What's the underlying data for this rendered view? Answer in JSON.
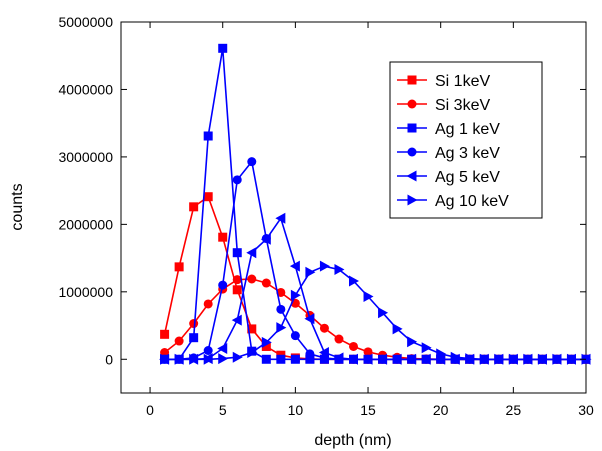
{
  "chart_data": {
    "type": "line",
    "title": "",
    "xlabel": "depth (nm)",
    "ylabel": "counts",
    "xlim": [
      -2,
      30
    ],
    "ylim": [
      -500000,
      5000000
    ],
    "xticks": [
      0,
      5,
      10,
      15,
      20,
      25,
      30
    ],
    "yticks": [
      0,
      1000000,
      2000000,
      3000000,
      4000000,
      5000000
    ],
    "xtick_labels": [
      "0",
      "5",
      "10",
      "15",
      "20",
      "25",
      "30"
    ],
    "ytick_labels": [
      "0",
      "1000000",
      "2000000",
      "3000000",
      "4000000",
      "5000000"
    ],
    "grid": false,
    "legend_position": "top-right",
    "x": [
      1,
      2,
      3,
      4,
      5,
      6,
      7,
      8,
      9,
      10,
      11,
      12,
      13,
      14,
      15,
      16,
      17,
      18,
      19,
      20,
      21,
      22,
      23,
      24,
      25,
      26,
      27,
      28,
      29,
      30
    ],
    "series": [
      {
        "name": "Si 1keV",
        "color": "#ff0000",
        "marker": "square",
        "values": [
          370000,
          1370000,
          2260000,
          2410000,
          1810000,
          1030000,
          450000,
          190000,
          60000,
          20000,
          5000,
          0,
          0,
          0,
          0,
          0,
          0,
          0,
          0,
          0,
          0,
          0,
          0,
          0,
          0,
          0,
          0,
          0,
          0,
          0
        ]
      },
      {
        "name": "Si 3keV",
        "color": "#ff0000",
        "marker": "circle",
        "values": [
          100000,
          270000,
          530000,
          820000,
          1040000,
          1180000,
          1190000,
          1130000,
          990000,
          830000,
          650000,
          460000,
          300000,
          190000,
          110000,
          60000,
          30000,
          10000,
          5000,
          0,
          0,
          0,
          0,
          0,
          0,
          0,
          0,
          0,
          0,
          0
        ]
      },
      {
        "name": "Ag 1 keV",
        "color": "#0000ff",
        "marker": "square",
        "values": [
          0,
          0,
          320000,
          3310000,
          4610000,
          1580000,
          120000,
          0,
          0,
          0,
          0,
          0,
          0,
          0,
          0,
          0,
          0,
          0,
          0,
          0,
          0,
          0,
          0,
          0,
          0,
          0,
          0,
          0,
          0,
          0
        ]
      },
      {
        "name": "Ag 3 keV",
        "color": "#0000ff",
        "marker": "circle",
        "values": [
          0,
          0,
          20000,
          130000,
          1100000,
          2660000,
          2930000,
          1790000,
          740000,
          350000,
          80000,
          20000,
          0,
          0,
          0,
          0,
          0,
          0,
          0,
          0,
          0,
          0,
          0,
          0,
          0,
          0,
          0,
          0,
          0,
          0
        ]
      },
      {
        "name": "Ag 5 keV",
        "color": "#0000ff",
        "marker": "triangle-left",
        "values": [
          0,
          0,
          0,
          10000,
          160000,
          580000,
          1580000,
          1780000,
          2090000,
          1380000,
          600000,
          100000,
          20000,
          0,
          0,
          0,
          0,
          0,
          0,
          0,
          0,
          0,
          0,
          0,
          0,
          0,
          0,
          0,
          0,
          0
        ]
      },
      {
        "name": "Ag 10 keV",
        "color": "#0000ff",
        "marker": "triangle-right",
        "values": [
          0,
          0,
          0,
          0,
          10000,
          30000,
          100000,
          250000,
          470000,
          950000,
          1290000,
          1380000,
          1330000,
          1160000,
          930000,
          690000,
          450000,
          260000,
          170000,
          80000,
          30000,
          10000,
          0,
          0,
          0,
          0,
          0,
          0,
          0,
          0
        ]
      }
    ]
  }
}
